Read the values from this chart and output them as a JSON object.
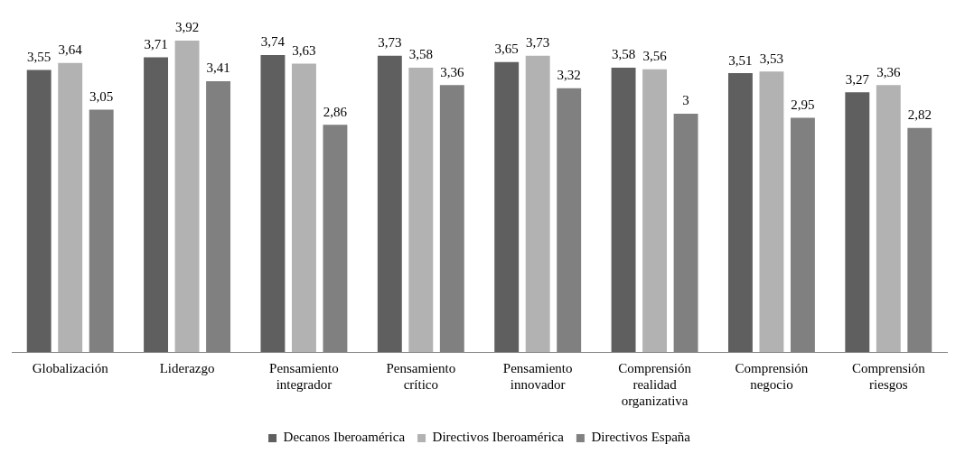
{
  "chart_data": {
    "type": "bar",
    "categories": [
      "Globalización",
      "Liderazgo",
      "Pensamiento integrador",
      "Pensamiento crítico",
      "Pensamiento innovador",
      "Comprensión realidad organizativa",
      "Comprensión negocio",
      "Comprensión riesgos"
    ],
    "series": [
      {
        "name": "Decanos Iberoamérica",
        "color": "#5f5f5f",
        "values": [
          3.55,
          3.71,
          3.74,
          3.73,
          3.65,
          3.58,
          3.51,
          3.27
        ],
        "value_labels": [
          "3,55",
          "3,71",
          "3,74",
          "3,73",
          "3,65",
          "3,58",
          "3,51",
          "3,27"
        ]
      },
      {
        "name": "Directivos Iberoamérica",
        "color": "#b2b2b2",
        "values": [
          3.64,
          3.92,
          3.63,
          3.58,
          3.73,
          3.56,
          3.53,
          3.36
        ],
        "value_labels": [
          "3,64",
          "3,92",
          "3,63",
          "3,58",
          "3,73",
          "3,56",
          "3,53",
          "3,36"
        ]
      },
      {
        "name": "Directivos España",
        "color": "#808080",
        "values": [
          3.05,
          3.41,
          2.86,
          3.36,
          3.32,
          3,
          2.95,
          2.82
        ],
        "value_labels": [
          "3,05",
          "3,41",
          "2,86",
          "3,36",
          "3,32",
          "3",
          "2,95",
          "2,82"
        ]
      }
    ],
    "legend": "bottom",
    "grid": false
  }
}
